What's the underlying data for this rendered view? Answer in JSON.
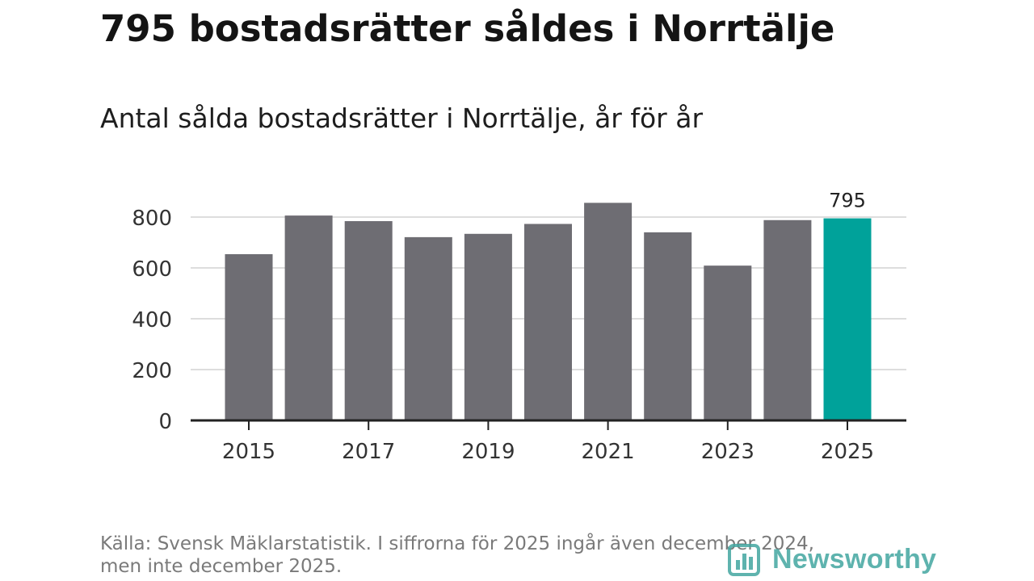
{
  "title": "795 bostadsrätter såldes i Norrtälje",
  "subtitle": "Antal sålda bostadsrätter i Norrtälje, år för år",
  "chart_data": {
    "type": "bar",
    "title": "795 bostadsrätter såldes i Norrtälje",
    "subtitle": "Antal sålda bostadsrätter i Norrtälje, år för år",
    "categories": [
      "2015",
      "2016",
      "2017",
      "2018",
      "2019",
      "2020",
      "2021",
      "2022",
      "2023",
      "2024",
      "2025"
    ],
    "values": [
      654,
      806,
      784,
      721,
      734,
      773,
      856,
      740,
      609,
      788,
      795
    ],
    "x_tick_labels": [
      "2015",
      "2017",
      "2019",
      "2021",
      "2023",
      "2025"
    ],
    "y_ticks": [
      0,
      200,
      400,
      600,
      800
    ],
    "ylim": [
      0,
      900
    ],
    "xlabel": "",
    "ylabel": "",
    "grid": true,
    "highlight": {
      "category": "2025",
      "label": "795"
    },
    "colors": {
      "bar": "#6e6d73",
      "highlight": "#00a29a",
      "grid": "#dddddd",
      "axis": "#222222"
    }
  },
  "source": {
    "line1": "Källa: Svensk Mäklarstatistik. I siffrorna för 2025 ingår även december 2024,",
    "line2": "men inte december 2025."
  },
  "brand": {
    "name": "Newsworthy",
    "icon": "bar-chart-logo-icon",
    "color": "#43a6a0"
  }
}
